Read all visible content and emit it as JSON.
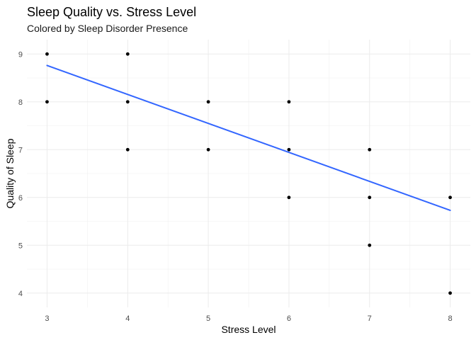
{
  "chart_data": {
    "type": "scatter",
    "title": "Sleep Quality vs. Stress Level",
    "subtitle": "Colored by Sleep Disorder Presence",
    "xlabel": "Stress Level",
    "ylabel": "Quality of Sleep",
    "xlim": [
      2.75,
      8.25
    ],
    "ylim": [
      3.7,
      9.3
    ],
    "x_ticks": [
      3,
      4,
      5,
      6,
      7,
      8
    ],
    "y_ticks": [
      4,
      5,
      6,
      7,
      8,
      9
    ],
    "grid": true,
    "point_color": "#000000",
    "points": [
      {
        "x": 3,
        "y": 9
      },
      {
        "x": 3,
        "y": 8
      },
      {
        "x": 4,
        "y": 9
      },
      {
        "x": 4,
        "y": 8
      },
      {
        "x": 4,
        "y": 7
      },
      {
        "x": 5,
        "y": 8
      },
      {
        "x": 5,
        "y": 7
      },
      {
        "x": 6,
        "y": 8
      },
      {
        "x": 6,
        "y": 7
      },
      {
        "x": 6,
        "y": 6
      },
      {
        "x": 7,
        "y": 7
      },
      {
        "x": 7,
        "y": 6
      },
      {
        "x": 7,
        "y": 5
      },
      {
        "x": 8,
        "y": 6
      },
      {
        "x": 8,
        "y": 4
      }
    ],
    "trend_line": {
      "method": "linear",
      "color": "#3366FF",
      "start": {
        "x": 3,
        "y": 8.76
      },
      "end": {
        "x": 8,
        "y": 5.73
      }
    }
  }
}
